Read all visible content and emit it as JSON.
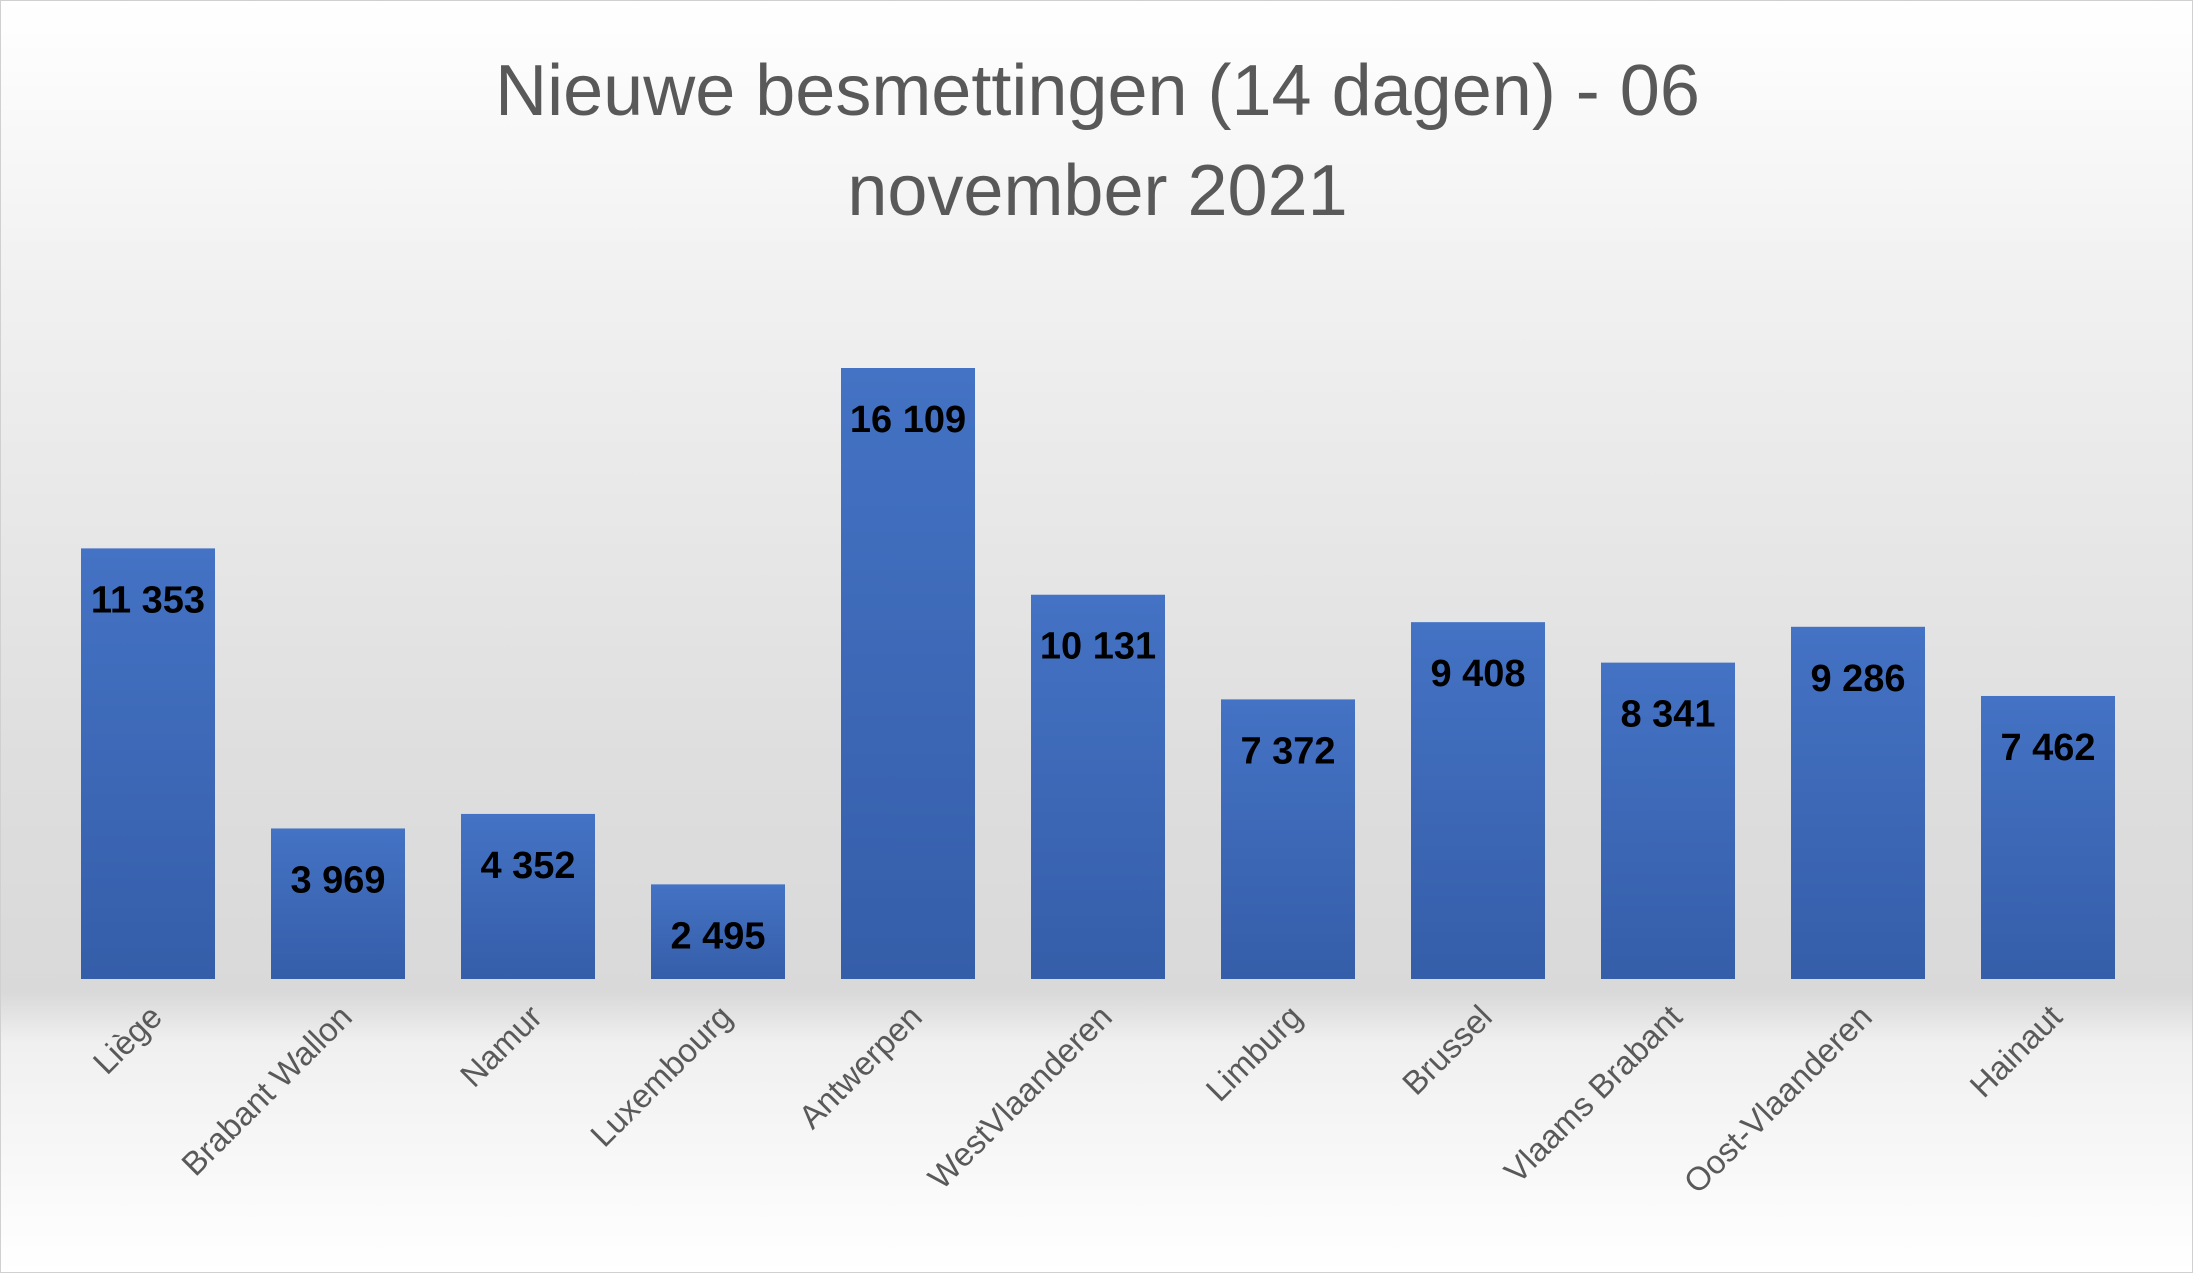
{
  "chart_data": {
    "type": "bar",
    "title": "Nieuwe besmettingen (14 dagen) - 06 november 2021",
    "categories": [
      "Liège",
      "Brabant Wallon",
      "Namur",
      "Luxembourg",
      "Antwerpen",
      "WestVlaanderen",
      "Limburg",
      "Brussel",
      "Vlaams Brabant",
      "Oost-Vlaanderen",
      "Hainaut"
    ],
    "values": [
      11353,
      3969,
      4352,
      2495,
      16109,
      10131,
      7372,
      9408,
      8341,
      9286,
      7462
    ],
    "value_labels": [
      "11 353",
      "3 969",
      "4 352",
      "2 495",
      "16 109",
      "10 131",
      "7 372",
      "9 408",
      "8 341",
      "9 286",
      "7 462"
    ],
    "xlabel": "",
    "ylabel": "",
    "grid": false,
    "legend": "none",
    "bar_color": "#4472C4",
    "bar_color_dark": "#3560A8",
    "label_color": "#000000",
    "axis_label_color": "#595959",
    "title_color": "#595959"
  }
}
